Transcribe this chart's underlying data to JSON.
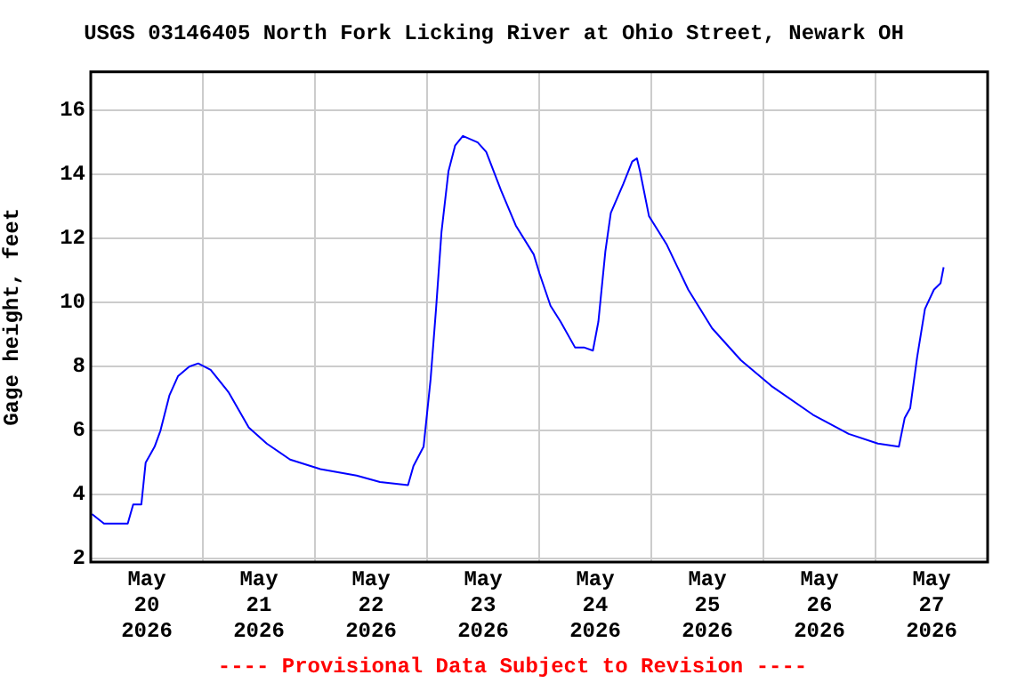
{
  "chart_data": {
    "type": "line",
    "title": "USGS 03146405 North Fork Licking River at Ohio Street, Newark OH",
    "ylabel": "Gage height, feet",
    "x": [
      "2026-05-20T00:15",
      "2026-05-20T02:50",
      "2026-05-20T07:55",
      "2026-05-20T09:05",
      "2026-05-20T10:50",
      "2026-05-20T11:45",
      "2026-05-20T13:40",
      "2026-05-20T14:55",
      "2026-05-20T16:50",
      "2026-05-20T18:40",
      "2026-05-20T21:05",
      "2026-05-20T23:00",
      "2026-05-21T01:40",
      "2026-05-21T05:30",
      "2026-05-21T09:50",
      "2026-05-21T13:40",
      "2026-05-21T18:40",
      "2026-05-22T01:10",
      "2026-05-22T08:55",
      "2026-05-22T13:55",
      "2026-05-22T19:55",
      "2026-05-22T21:05",
      "2026-05-22T23:15",
      "2026-05-23T00:45",
      "2026-05-23T01:55",
      "2026-05-23T03:05",
      "2026-05-23T04:35",
      "2026-05-23T06:00",
      "2026-05-23T07:40",
      "2026-05-23T10:50",
      "2026-05-23T12:40",
      "2026-05-23T15:50",
      "2026-05-23T19:00",
      "2026-05-23T22:50",
      "2026-05-24T00:05",
      "2026-05-24T02:25",
      "2026-05-24T04:35",
      "2026-05-24T07:40",
      "2026-05-24T09:35",
      "2026-05-24T11:30",
      "2026-05-24T12:40",
      "2026-05-24T14:10",
      "2026-05-24T15:20",
      "2026-05-24T18:00",
      "2026-05-24T19:55",
      "2026-05-24T20:55",
      "2026-05-24T21:35",
      "2026-05-24T23:30",
      "2026-05-25T03:20",
      "2026-05-25T07:55",
      "2026-05-25T13:00",
      "2026-05-25T19:10",
      "2026-05-26T01:40",
      "2026-05-26T10:35",
      "2026-05-26T18:15",
      "2026-05-27T00:30",
      "2026-05-27T05:00",
      "2026-05-27T06:15",
      "2026-05-27T07:25",
      "2026-05-27T08:55",
      "2026-05-27T10:35",
      "2026-05-27T12:30",
      "2026-05-27T13:55",
      "2026-05-27T14:35"
    ],
    "series": [
      {
        "color": "#0000ff",
        "values": [
          3.4,
          3.1,
          3.1,
          3.7,
          3.7,
          5.0,
          5.5,
          6.0,
          7.1,
          7.7,
          8.0,
          8.1,
          7.9,
          7.2,
          6.1,
          5.6,
          5.1,
          4.8,
          4.6,
          4.4,
          4.3,
          4.9,
          5.5,
          7.6,
          9.8,
          12.2,
          14.1,
          14.9,
          15.2,
          15.0,
          14.7,
          13.5,
          12.4,
          11.5,
          10.9,
          9.9,
          9.4,
          8.6,
          8.6,
          8.5,
          9.4,
          11.6,
          12.8,
          13.7,
          14.4,
          14.5,
          14.1,
          12.7,
          11.8,
          10.4,
          9.2,
          8.2,
          7.4,
          6.5,
          5.9,
          5.6,
          5.5,
          6.4,
          6.7,
          8.3,
          9.8,
          10.4,
          10.6,
          11.1
        ]
      }
    ],
    "xlim": [
      "2026-05-20",
      "2026-05-28"
    ],
    "xticks": [
      {
        "value": "2026-05-20T12:00",
        "label": "May\n20\n2026"
      },
      {
        "value": "2026-05-21",
        "label": null
      },
      {
        "value": "2026-05-21T12:00",
        "label": "May\n21\n2026"
      },
      {
        "value": "2026-05-22",
        "label": null
      },
      {
        "value": "2026-05-22T12:00",
        "label": "May\n22\n2026"
      },
      {
        "value": "2026-05-23",
        "label": null
      },
      {
        "value": "2026-05-23T12:00",
        "label": "May\n23\n2026"
      },
      {
        "value": "2026-05-24",
        "label": null
      },
      {
        "value": "2026-05-24T12:00",
        "label": "May\n24\n2026"
      },
      {
        "value": "2026-05-25",
        "label": null
      },
      {
        "value": "2026-05-25T12:00",
        "label": "May\n25\n2026"
      },
      {
        "value": "2026-05-26",
        "label": null
      },
      {
        "value": "2026-05-26T12:00",
        "label": "May\n26\n2026"
      },
      {
        "value": "2026-05-27",
        "label": null
      },
      {
        "value": "2026-05-27T12:00",
        "label": "May\n27\n2026"
      }
    ],
    "ylim": [
      1.9,
      17.2
    ],
    "yticks": [
      2,
      4,
      6,
      8,
      10,
      12,
      14,
      16
    ],
    "grid": true,
    "line_style": "solid",
    "marker": "none",
    "annotations": [
      "---- Provisional Data Subject to Revision ----"
    ]
  }
}
